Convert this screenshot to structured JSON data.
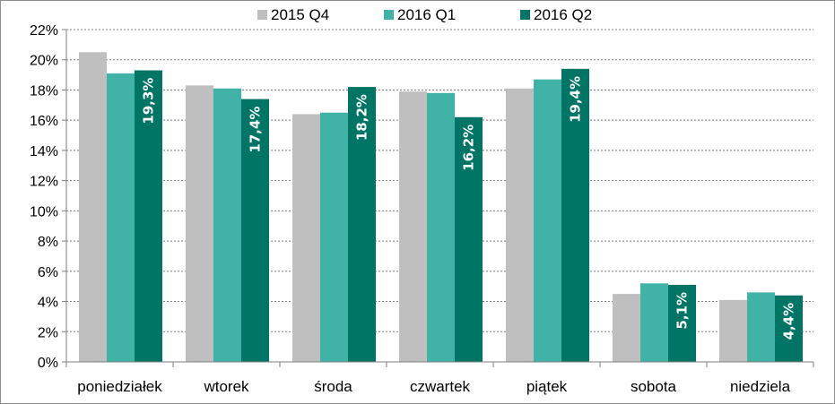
{
  "chart_data": {
    "type": "bar",
    "title": "",
    "xlabel": "",
    "ylabel": "",
    "categories": [
      "poniedziałek",
      "wtorek",
      "środa",
      "czwartek",
      "piątek",
      "sobota",
      "niedziela"
    ],
    "series": [
      {
        "name": "2015 Q4",
        "color": "#bfbfbf",
        "values": [
          20.5,
          18.3,
          16.4,
          17.9,
          18.1,
          4.5,
          4.1
        ]
      },
      {
        "name": "2016 Q1",
        "color": "#41b3a6",
        "values": [
          19.1,
          18.1,
          16.5,
          17.8,
          18.7,
          5.2,
          4.6
        ]
      },
      {
        "name": "2016 Q2",
        "color": "#007566",
        "values": [
          19.3,
          17.4,
          18.2,
          16.2,
          19.4,
          5.1,
          4.4
        ],
        "data_labels": [
          "19,3%",
          "17,4%",
          "18,2%",
          "16,2%",
          "19,4%",
          "5,1%",
          "4,4%"
        ]
      }
    ],
    "ylim": [
      0,
      22
    ],
    "yticks": [
      0,
      2,
      4,
      6,
      8,
      10,
      12,
      14,
      16,
      18,
      20,
      22
    ],
    "ytick_labels": [
      "0%",
      "2%",
      "4%",
      "6%",
      "8%",
      "10%",
      "12%",
      "14%",
      "16%",
      "18%",
      "20%",
      "22%"
    ],
    "grid": true,
    "legend_position": "top"
  }
}
